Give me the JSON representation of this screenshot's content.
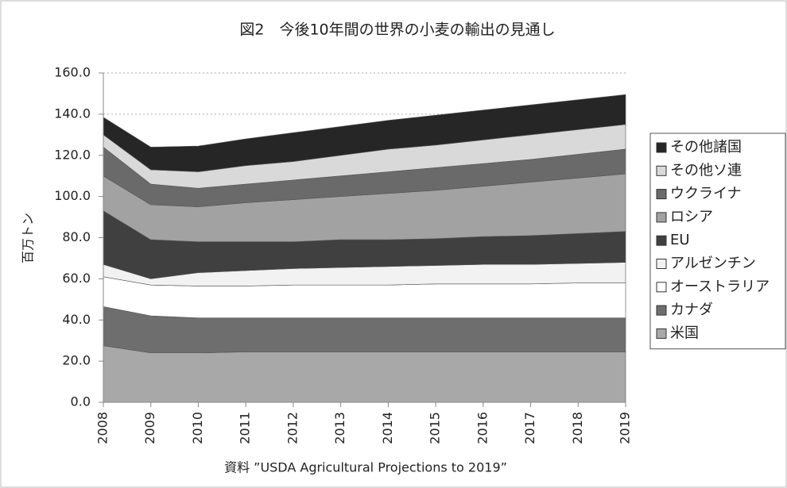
{
  "chart_data": {
    "type": "stacked_area",
    "title": "図2　今後10年間の世界の小麦の輸出の見通し",
    "y_label": "百万トン",
    "source": "資料 ”USDA Agricultural Projections to 2019”",
    "categories": [
      "2008",
      "2009",
      "2010",
      "2011",
      "2012",
      "2013",
      "2014",
      "2015",
      "2016",
      "2017",
      "2018",
      "2019"
    ],
    "ylim": [
      0,
      160
    ],
    "yticks": [
      {
        "value": 0,
        "label": "0.0"
      },
      {
        "value": 20,
        "label": "20.0"
      },
      {
        "value": 40,
        "label": "40.0"
      },
      {
        "value": 60,
        "label": "60.0"
      },
      {
        "value": 80,
        "label": "80.0"
      },
      {
        "value": 100,
        "label": "100.0"
      },
      {
        "value": 120,
        "label": "120.0"
      },
      {
        "value": 140,
        "label": "140.0"
      },
      {
        "value": 160,
        "label": "160.0"
      }
    ],
    "grid": true,
    "legend": "right",
    "series": [
      {
        "name": "米国",
        "color": "#a8a8a8",
        "values": [
          27.5,
          24,
          24,
          24.5,
          24.5,
          24.5,
          24.5,
          24.5,
          24.5,
          24.5,
          24.5,
          24.5
        ]
      },
      {
        "name": "カナダ",
        "color": "#6e6e6e",
        "values": [
          19,
          18,
          17,
          16.5,
          16.5,
          16.5,
          16.5,
          16.5,
          16.5,
          16.5,
          16.5,
          16.5
        ]
      },
      {
        "name": "オーストラリア",
        "color": "#ffffff",
        "values": [
          14.5,
          15,
          15.5,
          15.5,
          16,
          16,
          16,
          16.5,
          16.5,
          16.5,
          17,
          17
        ]
      },
      {
        "name": "アルゼンチン",
        "color": "#f2f2f2",
        "values": [
          6,
          3,
          6.5,
          7.5,
          8,
          8.5,
          9,
          9,
          9.5,
          9.5,
          9.5,
          10
        ]
      },
      {
        "name": "EU",
        "color": "#404040",
        "values": [
          26,
          19,
          15,
          14,
          13,
          13.5,
          13,
          13,
          13.5,
          14,
          14.5,
          15
        ]
      },
      {
        "name": "ロシア",
        "color": "#a2a2a2",
        "values": [
          17,
          17,
          17,
          19,
          20.5,
          21,
          22.5,
          23.5,
          24.5,
          26,
          27,
          28
        ]
      },
      {
        "name": "ウクライナ",
        "color": "#6a6a6a",
        "values": [
          14,
          10,
          9,
          9,
          9.5,
          10,
          10.5,
          11,
          11,
          11,
          11.5,
          12
        ]
      },
      {
        "name": "その他ソ連",
        "color": "#d9d9d9",
        "values": [
          6,
          7,
          8,
          9,
          9,
          10,
          11,
          11,
          11.5,
          12,
          12,
          12
        ]
      },
      {
        "name": "その他諸国",
        "color": "#262626",
        "values": [
          8.5,
          11,
          12.5,
          13,
          14,
          14,
          14,
          14.5,
          14.5,
          14.5,
          14.5,
          14.5
        ]
      }
    ]
  }
}
